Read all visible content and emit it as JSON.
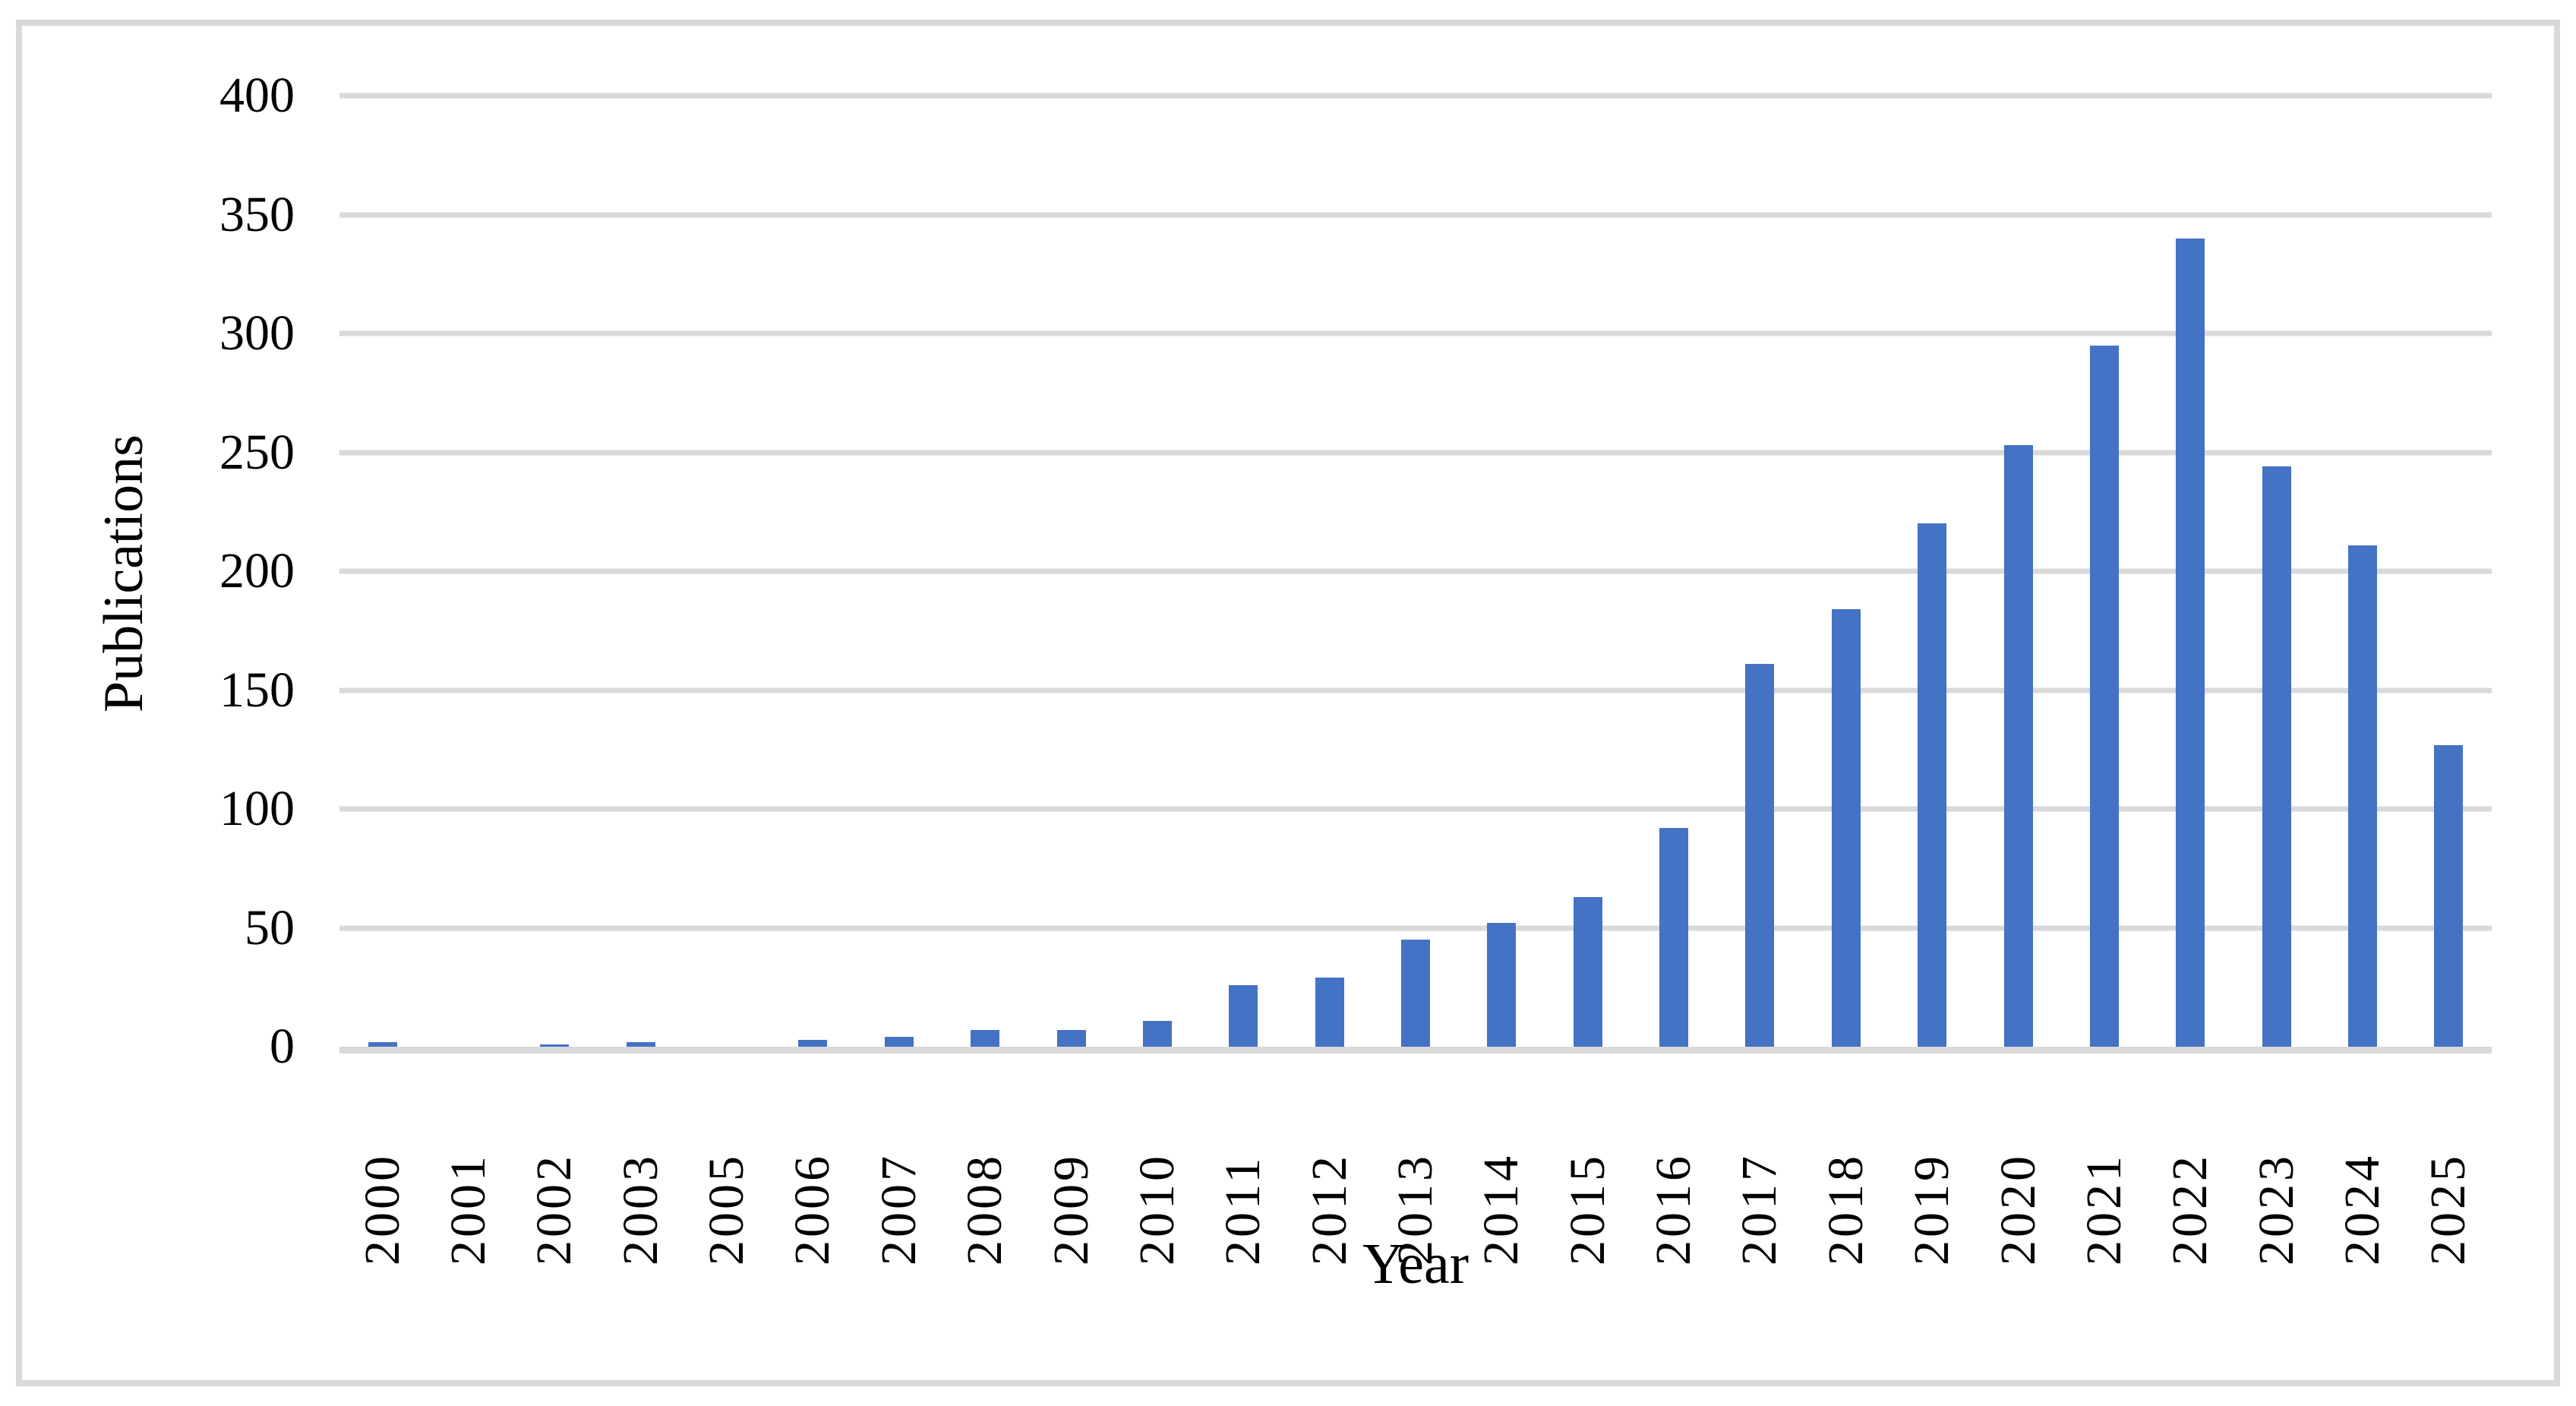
{
  "figure": {
    "kind": "publication-trend-bar-chart",
    "background_color": "#FFFFFF",
    "frame_color": "#D9D9D9",
    "text_color": "#000000"
  },
  "chart_data": {
    "type": "bar",
    "title": "",
    "xlabel": "Year",
    "ylabel": "Publications",
    "categories": [
      "2000",
      "2001",
      "2002",
      "2003",
      "2005",
      "2006",
      "2007",
      "2008",
      "2009",
      "2010",
      "2011",
      "2012",
      "2013",
      "2014",
      "2015",
      "2016",
      "2017",
      "2018",
      "2019",
      "2020",
      "2021",
      "2022",
      "2023",
      "2024",
      "2025"
    ],
    "values": [
      2,
      0,
      1,
      2,
      0,
      3,
      4,
      7,
      7,
      11,
      26,
      29,
      45,
      52,
      63,
      92,
      161,
      184,
      220,
      253,
      295,
      340,
      244,
      211,
      127
    ],
    "ylim": [
      0,
      400
    ],
    "yticks": [
      400,
      350,
      300,
      250,
      200,
      150,
      100,
      50,
      0
    ],
    "grid": "horizontal",
    "legend_position": "none",
    "bar_color": "#4472C4",
    "gridline_color": "#D9D9D9",
    "notes": "Category 2004 absent from axis; 2001 and 2005 shown with zero-height bars"
  }
}
